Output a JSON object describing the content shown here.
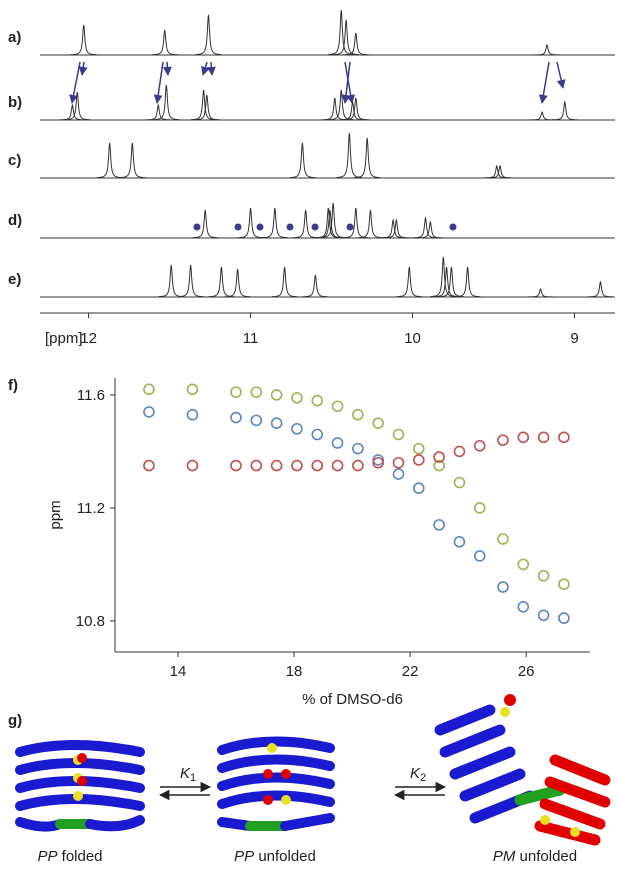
{
  "chart_data": [
    {
      "type": "spectra",
      "axis_label": "[ppm]",
      "xlim": [
        12.3,
        8.75
      ],
      "xticks": [
        12,
        11,
        10,
        9
      ],
      "series": [
        {
          "name": "a)",
          "peaks": [
            12.03,
            11.53,
            11.26,
            10.44,
            10.41,
            10.35,
            9.17
          ],
          "intensity": [
            30,
            25,
            40,
            45,
            35,
            22,
            10
          ]
        },
        {
          "name": "b)",
          "peaks": [
            12.1,
            12.07,
            11.57,
            11.52,
            11.29,
            11.27,
            10.48,
            10.44,
            10.37,
            10.35,
            9.2,
            9.06
          ],
          "intensity": [
            15,
            28,
            15,
            35,
            30,
            25,
            22,
            30,
            18,
            22,
            8,
            18
          ]
        },
        {
          "name": "c)",
          "peaks": [
            11.87,
            11.73,
            10.68,
            10.39,
            10.28,
            9.48,
            9.46
          ],
          "intensity": [
            35,
            35,
            35,
            45,
            40,
            12,
            12
          ]
        },
        {
          "name": "d)",
          "peaks": [
            11.28,
            11.0,
            10.85,
            10.66,
            10.52,
            10.51,
            10.49,
            10.35,
            10.26,
            10.12,
            10.1,
            9.92,
            9.89
          ],
          "intensity": [
            28,
            30,
            30,
            28,
            30,
            28,
            35,
            30,
            28,
            18,
            18,
            20,
            16
          ]
        },
        {
          "name": "e)",
          "peaks": [
            11.49,
            11.37,
            11.18,
            11.08,
            10.79,
            10.6,
            10.02,
            9.81,
            9.79,
            9.76,
            9.66,
            9.21,
            8.84
          ],
          "intensity": [
            32,
            32,
            30,
            28,
            30,
            22,
            30,
            40,
            30,
            30,
            30,
            8,
            15
          ]
        }
      ]
    },
    {
      "type": "scatter",
      "panel": "f)",
      "x_label": "% of DMSO-d6",
      "y_label": "ppm",
      "xlim": [
        11.83,
        28.2
      ],
      "xticks": [
        14,
        18,
        22,
        26
      ],
      "ylim": [
        10.69,
        11.66
      ],
      "yticks": [
        {
          "value": 10.8,
          "label": "10.8"
        },
        11.2,
        11.6
      ],
      "x": [
        13,
        14.5,
        16,
        16.7,
        17.4,
        18.1,
        18.8,
        19.5,
        20.2,
        20.9,
        21.6,
        22.3,
        23,
        23.7,
        24.4,
        25.2,
        25.9,
        26.6,
        27.3
      ],
      "series": [
        {
          "color": "#9ab552",
          "values": [
            11.62,
            11.62,
            11.61,
            11.61,
            11.6,
            11.59,
            11.58,
            11.56,
            11.53,
            11.5,
            11.46,
            11.41,
            11.35,
            11.29,
            11.2,
            11.09,
            11.0,
            10.96,
            10.93
          ]
        },
        {
          "color": "#5b86c0",
          "values": [
            11.54,
            11.53,
            11.52,
            11.51,
            11.5,
            11.48,
            11.46,
            11.43,
            11.41,
            11.37,
            11.32,
            11.27,
            11.14,
            11.08,
            11.03,
            10.92,
            10.85,
            10.82,
            10.81
          ]
        },
        {
          "color": "#c0504d",
          "values": [
            11.35,
            11.35,
            11.35,
            11.35,
            11.35,
            11.35,
            11.35,
            11.35,
            11.35,
            11.36,
            11.36,
            11.37,
            11.38,
            11.4,
            11.42,
            11.44,
            11.45,
            11.45,
            11.45
          ]
        }
      ]
    }
  ],
  "scheme": {
    "panel": "g)",
    "species": [
      {
        "italic": "PP",
        "text": "folded"
      },
      {
        "italic": "PP",
        "text": "unfolded"
      },
      {
        "italic": "PM",
        "text": "unfolded"
      }
    ],
    "constants": [
      {
        "symbol": "K",
        "subscript": "1"
      },
      {
        "symbol": "K",
        "subscript": "2"
      }
    ]
  }
}
